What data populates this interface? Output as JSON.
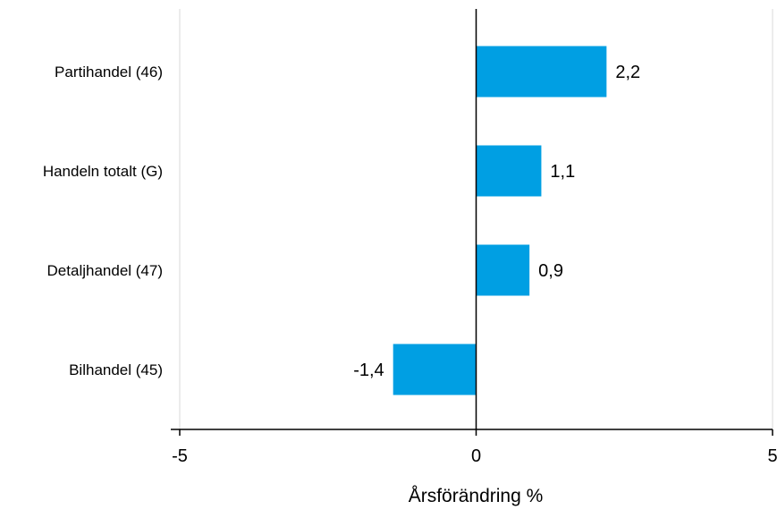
{
  "chart_data": {
    "type": "bar",
    "orientation": "horizontal",
    "categories": [
      "Partihandel (46)",
      "Handeln totalt (G)",
      "Detaljhandel (47)",
      "Bilhandel (45)"
    ],
    "values": [
      2.2,
      1.1,
      0.9,
      -1.4
    ],
    "value_labels": [
      "2,2",
      "1,1",
      "0,9",
      "-1,4"
    ],
    "xlabel": "Årsförändring %",
    "ylabel": "",
    "xlim": [
      -5,
      5
    ],
    "x_ticks": [
      -5,
      0,
      5
    ],
    "x_tick_labels": [
      "-5",
      "0",
      "5"
    ],
    "grid": true,
    "legend": "none",
    "bar_color": "#009fe3",
    "axis_color": "#000000",
    "grid_color": "#d9d9d9"
  }
}
